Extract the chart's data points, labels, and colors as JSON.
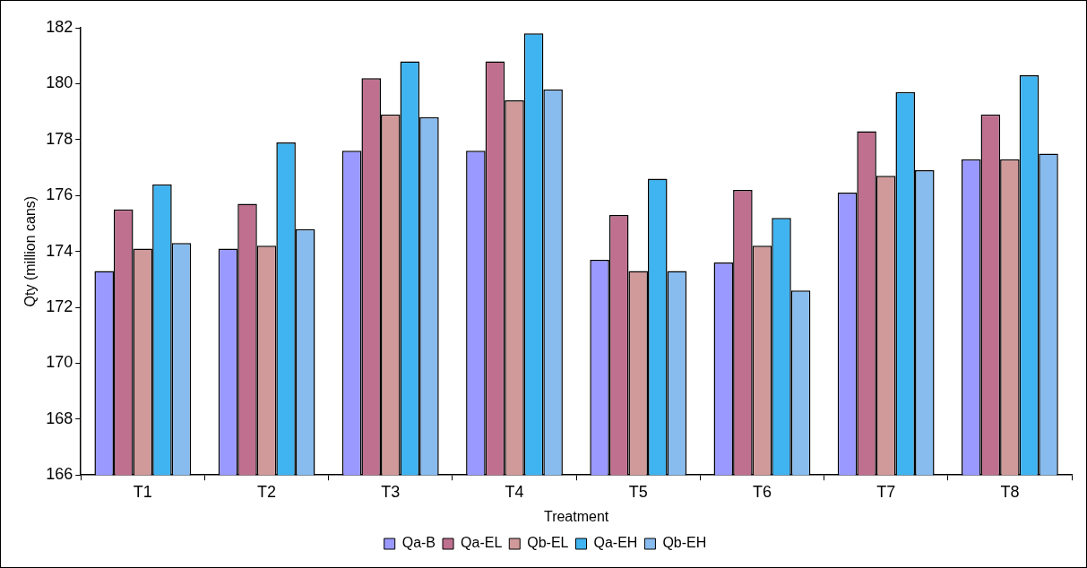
{
  "chart_data": {
    "type": "bar",
    "xlabel": "Treatment",
    "ylabel": "Qty (million cans)",
    "categories": [
      "T1",
      "T2",
      "T3",
      "T4",
      "T5",
      "T6",
      "T7",
      "T8"
    ],
    "series": [
      {
        "name": "Qa-B",
        "color": "#9999ff",
        "values": [
          173.3,
          174.1,
          177.6,
          177.6,
          173.7,
          173.6,
          176.1,
          177.3
        ]
      },
      {
        "name": "Qa-EL",
        "color": "#c0708f",
        "values": [
          175.5,
          175.7,
          180.2,
          180.8,
          175.3,
          176.2,
          178.3,
          178.9
        ]
      },
      {
        "name": "Qb-EL",
        "color": "#d09a9a",
        "values": [
          174.1,
          174.2,
          178.9,
          179.4,
          173.3,
          174.2,
          176.7,
          177.3
        ]
      },
      {
        "name": "Qa-EH",
        "color": "#40b4f0",
        "values": [
          176.4,
          177.9,
          180.8,
          181.8,
          176.6,
          175.2,
          179.7,
          180.3
        ]
      },
      {
        "name": "Qb-EH",
        "color": "#88bbee",
        "values": [
          174.3,
          174.8,
          178.8,
          179.8,
          173.3,
          172.6,
          176.9,
          177.5
        ]
      }
    ],
    "ylim": [
      166,
      182
    ],
    "yticks": [
      166,
      168,
      170,
      172,
      174,
      176,
      178,
      180,
      182
    ],
    "grid": false,
    "legend": "bottom"
  }
}
